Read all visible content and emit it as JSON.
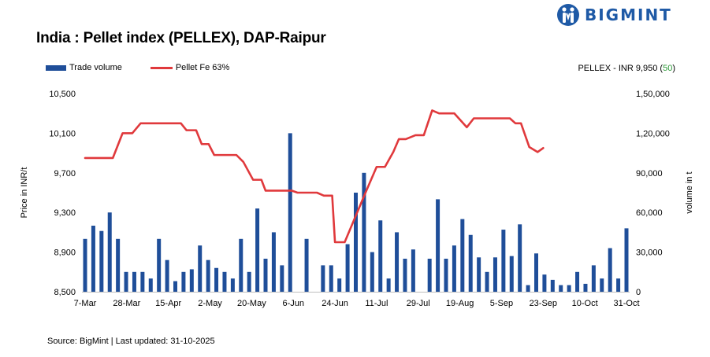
{
  "header": {
    "title": "India : Pellet index (PELLEX), DAP-Raipur",
    "logo_text": "BIGMINT"
  },
  "note": {
    "prefix": "PELLEX - INR 9,950 (",
    "change": "50",
    "suffix": ")"
  },
  "footer": {
    "source": "Source: BigMint | Last updated: 31-10-2025"
  },
  "colors": {
    "bar": "#1f4e99",
    "line": "#e0393c",
    "change": "#2e9a3a",
    "logo": "#1f5aa6"
  },
  "chart_data": {
    "type": "bar+line",
    "legend": [
      "Trade volume",
      "Pellet Fe 63%"
    ],
    "legend_position": "top-left",
    "grid": false,
    "y_left": {
      "label": "Price in INR/t",
      "range": [
        8500,
        10500
      ],
      "ticks": [
        "8,500",
        "8,900",
        "9,300",
        "9,700",
        "10,100",
        "10,500"
      ],
      "tick_values": [
        8500,
        8900,
        9300,
        9700,
        10100,
        10500
      ]
    },
    "y_right": {
      "label": "volume in t",
      "range": [
        0,
        150000
      ],
      "ticks": [
        "0",
        "30,000",
        "60,000",
        "90,000",
        "1,20,000",
        "1,50,000"
      ],
      "tick_values": [
        0,
        30000,
        60000,
        90000,
        120000,
        150000
      ]
    },
    "x_ticks": [
      {
        "label": "7-Mar",
        "index": 0
      },
      {
        "label": "28-Mar",
        "index": 3
      },
      {
        "label": "15-Apr",
        "index": 6
      },
      {
        "label": "2-May",
        "index": 9
      },
      {
        "label": "20-May",
        "index": 12
      },
      {
        "label": "6-Jun",
        "index": 15
      },
      {
        "label": "24-Jun",
        "index": 18
      },
      {
        "label": "11-Jul",
        "index": 21
      },
      {
        "label": "29-Jul",
        "index": 24
      },
      {
        "label": "19-Aug",
        "index": 27
      },
      {
        "label": "5-Sep",
        "index": 30
      },
      {
        "label": "23-Sep",
        "index": 33
      },
      {
        "label": "10-Oct",
        "index": 36
      },
      {
        "label": "31-Oct",
        "index": 39
      }
    ],
    "series": [
      {
        "name": "Trade volume",
        "type": "bar",
        "axis": "right",
        "values": [
          40000,
          50000,
          46000,
          60000,
          40000,
          15000,
          15000,
          15000,
          10000,
          40000,
          24000,
          8000,
          15000,
          17000,
          35000,
          24000,
          18000,
          15000,
          10000,
          40000,
          15000,
          63000,
          25000,
          45000,
          20000,
          120000,
          0,
          40000,
          0,
          20000,
          20000,
          10000,
          36000,
          75000,
          90000,
          30000,
          54000,
          10000,
          45000,
          25000,
          32000,
          0,
          25000,
          70000,
          25000,
          35000,
          55000,
          43000,
          26000,
          15000,
          26000,
          47000,
          27000,
          51000,
          5000,
          29000,
          13000,
          9000,
          5000,
          5000,
          15000,
          6000,
          20000,
          10000,
          33000,
          10000,
          48000
        ]
      },
      {
        "name": "Pellet Fe 63%",
        "type": "line",
        "axis": "left",
        "points": [
          [
            0,
            9850
          ],
          [
            2,
            9850
          ],
          [
            2.7,
            10100
          ],
          [
            3.4,
            10100
          ],
          [
            4.0,
            10200
          ],
          [
            6.9,
            10200
          ],
          [
            7.3,
            10130
          ],
          [
            8.0,
            10130
          ],
          [
            8.4,
            9990
          ],
          [
            8.9,
            9990
          ],
          [
            9.3,
            9880
          ],
          [
            10.9,
            9880
          ],
          [
            11.4,
            9810
          ],
          [
            12.1,
            9630
          ],
          [
            12.7,
            9630
          ],
          [
            13.0,
            9520
          ],
          [
            14.9,
            9520
          ],
          [
            15.3,
            9500
          ],
          [
            16.7,
            9500
          ],
          [
            17.2,
            9470
          ],
          [
            17.8,
            9470
          ],
          [
            18.0,
            9000
          ],
          [
            18.7,
            9000
          ],
          [
            20.2,
            9500
          ],
          [
            21.0,
            9760
          ],
          [
            21.6,
            9760
          ],
          [
            22.2,
            9910
          ],
          [
            22.6,
            10040
          ],
          [
            23.1,
            10040
          ],
          [
            23.8,
            10080
          ],
          [
            24.4,
            10080
          ],
          [
            25.0,
            10330
          ],
          [
            25.5,
            10300
          ],
          [
            26.6,
            10300
          ],
          [
            27.5,
            10160
          ],
          [
            28.0,
            10250
          ],
          [
            30.6,
            10250
          ],
          [
            31.0,
            10200
          ],
          [
            31.4,
            10200
          ],
          [
            32.0,
            9960
          ],
          [
            32.6,
            9910
          ],
          [
            33.0,
            9950
          ]
        ]
      }
    ]
  }
}
